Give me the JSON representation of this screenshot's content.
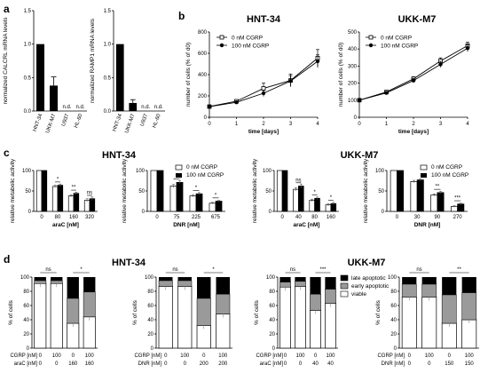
{
  "panel_labels": {
    "a": "a",
    "b": "b",
    "c": "c",
    "d": "d"
  },
  "panel_b_titles": [
    "HNT-34",
    "UKK-M7"
  ],
  "panel_c_titles": [
    "HNT-34",
    "UKK-M7"
  ],
  "panel_d_titles": [
    "HNT-34",
    "UKK-M7"
  ],
  "legend_b": [
    "0 nM CGRP",
    "100 nM CGRP"
  ],
  "legend_c": [
    "0 nM CGRP",
    "100 nM CGRP"
  ],
  "legend_d": [
    "late apoptotic",
    "early apoptotic",
    "viable"
  ],
  "chart_data": [
    {
      "panel": "a",
      "type": "bar",
      "ylabel": "normalized CALCRL mRNA levels",
      "categories": [
        "HNT-34",
        "UKK-M7",
        "U937",
        "HL-60"
      ],
      "values": [
        1.0,
        0.38,
        null,
        null
      ],
      "errors": [
        0,
        0.13,
        0,
        0
      ],
      "bar_labels": [
        "",
        "",
        "n.d.",
        "n.d."
      ],
      "ylim": [
        0,
        1.5
      ],
      "yticks": [
        "0.0",
        "0.5",
        "1.0",
        "1.5"
      ]
    },
    {
      "panel": "a",
      "type": "bar",
      "ylabel": "normalized RAMP1 mRNA levels",
      "categories": [
        "HNT-34",
        "UKK-M7",
        "U937",
        "HL-60"
      ],
      "values": [
        1.0,
        0.12,
        null,
        null
      ],
      "errors": [
        0,
        0.05,
        0,
        0
      ],
      "bar_labels": [
        "",
        "",
        "n.d.",
        "n.d."
      ],
      "ylim": [
        0,
        1.5
      ],
      "yticks": [
        "0.0",
        "0.5",
        "1.0",
        "1.5"
      ]
    },
    {
      "panel": "b",
      "type": "line",
      "title": "HNT-34",
      "xlabel": "time [days]",
      "ylabel": "number of cells (% of d0)",
      "xlim": [
        0,
        4
      ],
      "ylim": [
        0,
        800
      ],
      "xticks": [
        "0",
        "1",
        "2",
        "3",
        "4"
      ],
      "yticks": [
        "0",
        "200",
        "400",
        "600",
        "800"
      ],
      "x": [
        0,
        1,
        2,
        3,
        4
      ],
      "series": [
        {
          "name": "0 nM CGRP",
          "values": [
            100,
            150,
            270,
            345,
            555
          ],
          "errors": [
            0,
            12,
            50,
            60,
            80
          ]
        },
        {
          "name": "100 nM CGRP",
          "values": [
            100,
            140,
            225,
            340,
            525
          ],
          "errors": [
            0,
            10,
            30,
            50,
            60
          ]
        }
      ]
    },
    {
      "panel": "b",
      "type": "line",
      "title": "UKK-M7",
      "xlabel": "time [days]",
      "ylabel": "number of cells (% of d0)",
      "xlim": [
        0,
        4
      ],
      "ylim": [
        0,
        500
      ],
      "xticks": [
        "0",
        "1",
        "2",
        "3",
        "4"
      ],
      "yticks": [
        "0",
        "100",
        "200",
        "300",
        "400",
        "500"
      ],
      "x": [
        0,
        1,
        2,
        3,
        4
      ],
      "series": [
        {
          "name": "0 nM CGRP",
          "values": [
            100,
            148,
            225,
            330,
            420
          ],
          "errors": [
            0,
            8,
            12,
            18,
            20
          ]
        },
        {
          "name": "100 nM CGRP",
          "values": [
            100,
            143,
            215,
            310,
            405
          ],
          "errors": [
            0,
            8,
            12,
            18,
            20
          ]
        }
      ]
    },
    {
      "panel": "c",
      "type": "bar",
      "xlabel": "araC [nM]",
      "ylabel": "relative metabolic activity",
      "categories": [
        "0",
        "80",
        "160",
        "320"
      ],
      "ylim": [
        0,
        100
      ],
      "yticks": [
        "0",
        "50",
        "100"
      ],
      "series": [
        {
          "name": "0 nM CGRP",
          "values": [
            100,
            61,
            38,
            27
          ],
          "errors": [
            0,
            3,
            3,
            4
          ]
        },
        {
          "name": "100 nM CGRP",
          "values": [
            100,
            64,
            44,
            31
          ],
          "errors": [
            0,
            3,
            3,
            4
          ]
        }
      ],
      "significance": [
        "",
        "*",
        "**",
        "ns"
      ]
    },
    {
      "panel": "c",
      "type": "bar",
      "xlabel": "DNR [nM]",
      "ylabel": "relative metabolic activity",
      "categories": [
        "0",
        "75",
        "225",
        "675"
      ],
      "ylim": [
        0,
        100
      ],
      "yticks": [
        "0",
        "50",
        "100"
      ],
      "series": [
        {
          "name": "0 nM CGRP",
          "values": [
            100,
            62,
            38,
            20
          ],
          "errors": [
            0,
            4,
            3,
            2
          ]
        },
        {
          "name": "100 nM CGRP",
          "values": [
            100,
            71,
            43,
            25
          ],
          "errors": [
            0,
            4,
            3,
            2
          ]
        }
      ],
      "significance": [
        "",
        "*",
        "*",
        "*"
      ]
    },
    {
      "panel": "c",
      "type": "bar",
      "xlabel": "araC [nM]",
      "ylabel": "relative metabolic activity",
      "categories": [
        "0",
        "40",
        "80",
        "160"
      ],
      "ylim": [
        0,
        100
      ],
      "yticks": [
        "0",
        "50",
        "100"
      ],
      "series": [
        {
          "name": "0 nM CGRP",
          "values": [
            100,
            54,
            27,
            16
          ],
          "errors": [
            0,
            4,
            3,
            3
          ]
        },
        {
          "name": "100 nM CGRP",
          "values": [
            100,
            62,
            32,
            19
          ],
          "errors": [
            0,
            5,
            3,
            3
          ]
        }
      ],
      "significance": [
        "",
        "ns",
        "*",
        "*"
      ]
    },
    {
      "panel": "c",
      "type": "bar",
      "xlabel": "DNR [nM]",
      "ylabel": "relative metabolic activity",
      "categories": [
        "0",
        "30",
        "90",
        "270"
      ],
      "ylim": [
        0,
        100
      ],
      "yticks": [
        "0",
        "50",
        "100"
      ],
      "series": [
        {
          "name": "0 nM CGRP",
          "values": [
            100,
            73,
            40,
            12
          ],
          "errors": [
            0,
            3,
            3,
            2
          ]
        },
        {
          "name": "100 nM CGRP",
          "values": [
            100,
            77,
            46,
            18
          ],
          "errors": [
            0,
            3,
            3,
            2
          ]
        }
      ],
      "significance": [
        "",
        "",
        "**",
        "***"
      ]
    },
    {
      "panel": "d",
      "type": "bar",
      "stacked": true,
      "ylabel": "% of cells",
      "ylim": [
        0,
        100
      ],
      "yticks": [
        "0",
        "20",
        "40",
        "60",
        "80",
        "100"
      ],
      "row_labels": [
        "CGRP [nM]",
        "araC [nM]"
      ],
      "row_values": [
        [
          "0",
          "100",
          "0",
          "100"
        ],
        [
          "0",
          "0",
          "160",
          "160"
        ]
      ],
      "viable": [
        91,
        91,
        35,
        44
      ],
      "early": [
        4,
        4,
        35,
        35
      ],
      "late": [
        5,
        5,
        30,
        21
      ],
      "significance": [
        "ns",
        "*"
      ]
    },
    {
      "panel": "d",
      "type": "bar",
      "stacked": true,
      "ylabel": "% of cells",
      "ylim": [
        0,
        100
      ],
      "yticks": [
        "0",
        "20",
        "40",
        "60",
        "80",
        "100"
      ],
      "row_labels": [
        "CGRP [nM]",
        "DNR [nM]"
      ],
      "row_values": [
        [
          "0",
          "100",
          "0",
          "100"
        ],
        [
          "0",
          "0",
          "200",
          "200"
        ]
      ],
      "viable": [
        87,
        87,
        32,
        48
      ],
      "early": [
        8,
        8,
        38,
        28
      ],
      "late": [
        5,
        5,
        30,
        24
      ],
      "significance": [
        "ns",
        "*"
      ]
    },
    {
      "panel": "d",
      "type": "bar",
      "stacked": true,
      "ylabel": "% of cells",
      "ylim": [
        0,
        100
      ],
      "yticks": [
        "0",
        "20",
        "40",
        "60",
        "80",
        "100"
      ],
      "row_labels": [
        "CGRP [nM]",
        "araC [nM]"
      ],
      "row_values": [
        [
          "0",
          "100",
          "0",
          "100"
        ],
        [
          "0",
          "0",
          "40",
          "40"
        ]
      ],
      "viable": [
        86,
        87,
        53,
        63
      ],
      "early": [
        7,
        7,
        23,
        20
      ],
      "late": [
        7,
        6,
        24,
        17
      ],
      "significance": [
        "ns",
        "***"
      ]
    },
    {
      "panel": "d",
      "type": "bar",
      "stacked": true,
      "ylabel": "% of cells",
      "ylim": [
        0,
        100
      ],
      "yticks": [
        "0",
        "20",
        "40",
        "60",
        "80",
        "100"
      ],
      "row_labels": [
        "CGRP [nM]",
        "DNR [nM]"
      ],
      "row_values": [
        [
          "0",
          "100",
          "0",
          "100"
        ],
        [
          "0",
          "0",
          "150",
          "150"
        ]
      ],
      "viable": [
        72,
        72,
        35,
        40
      ],
      "early": [
        18,
        18,
        40,
        38
      ],
      "late": [
        10,
        10,
        25,
        22
      ],
      "significance": [
        "ns",
        "**"
      ]
    }
  ]
}
